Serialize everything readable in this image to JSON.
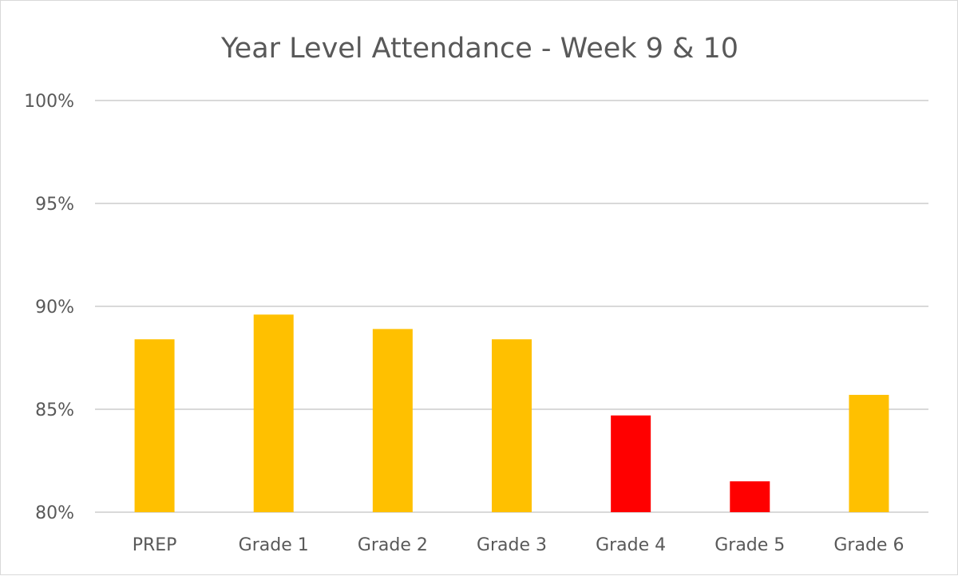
{
  "chart_data": {
    "type": "bar",
    "title": "Year Level Attendance - Week 9 & 10",
    "xlabel": "",
    "ylabel": "",
    "categories": [
      "PREP",
      "Grade 1",
      "Grade 2",
      "Grade 3",
      "Grade 4",
      "Grade 5",
      "Grade 6"
    ],
    "values": [
      88.4,
      89.6,
      88.9,
      88.4,
      84.7,
      81.5,
      85.7
    ],
    "ylim": [
      80,
      100
    ],
    "yticks": [
      80,
      85,
      90,
      95,
      100
    ],
    "ytick_labels": [
      "80%",
      "85%",
      "90%",
      "95%",
      "100%"
    ],
    "bar_colors": [
      "#FFC000",
      "#FFC000",
      "#FFC000",
      "#FFC000",
      "#FF0000",
      "#FF0000",
      "#FFC000"
    ],
    "grid": true,
    "legend": "none"
  }
}
